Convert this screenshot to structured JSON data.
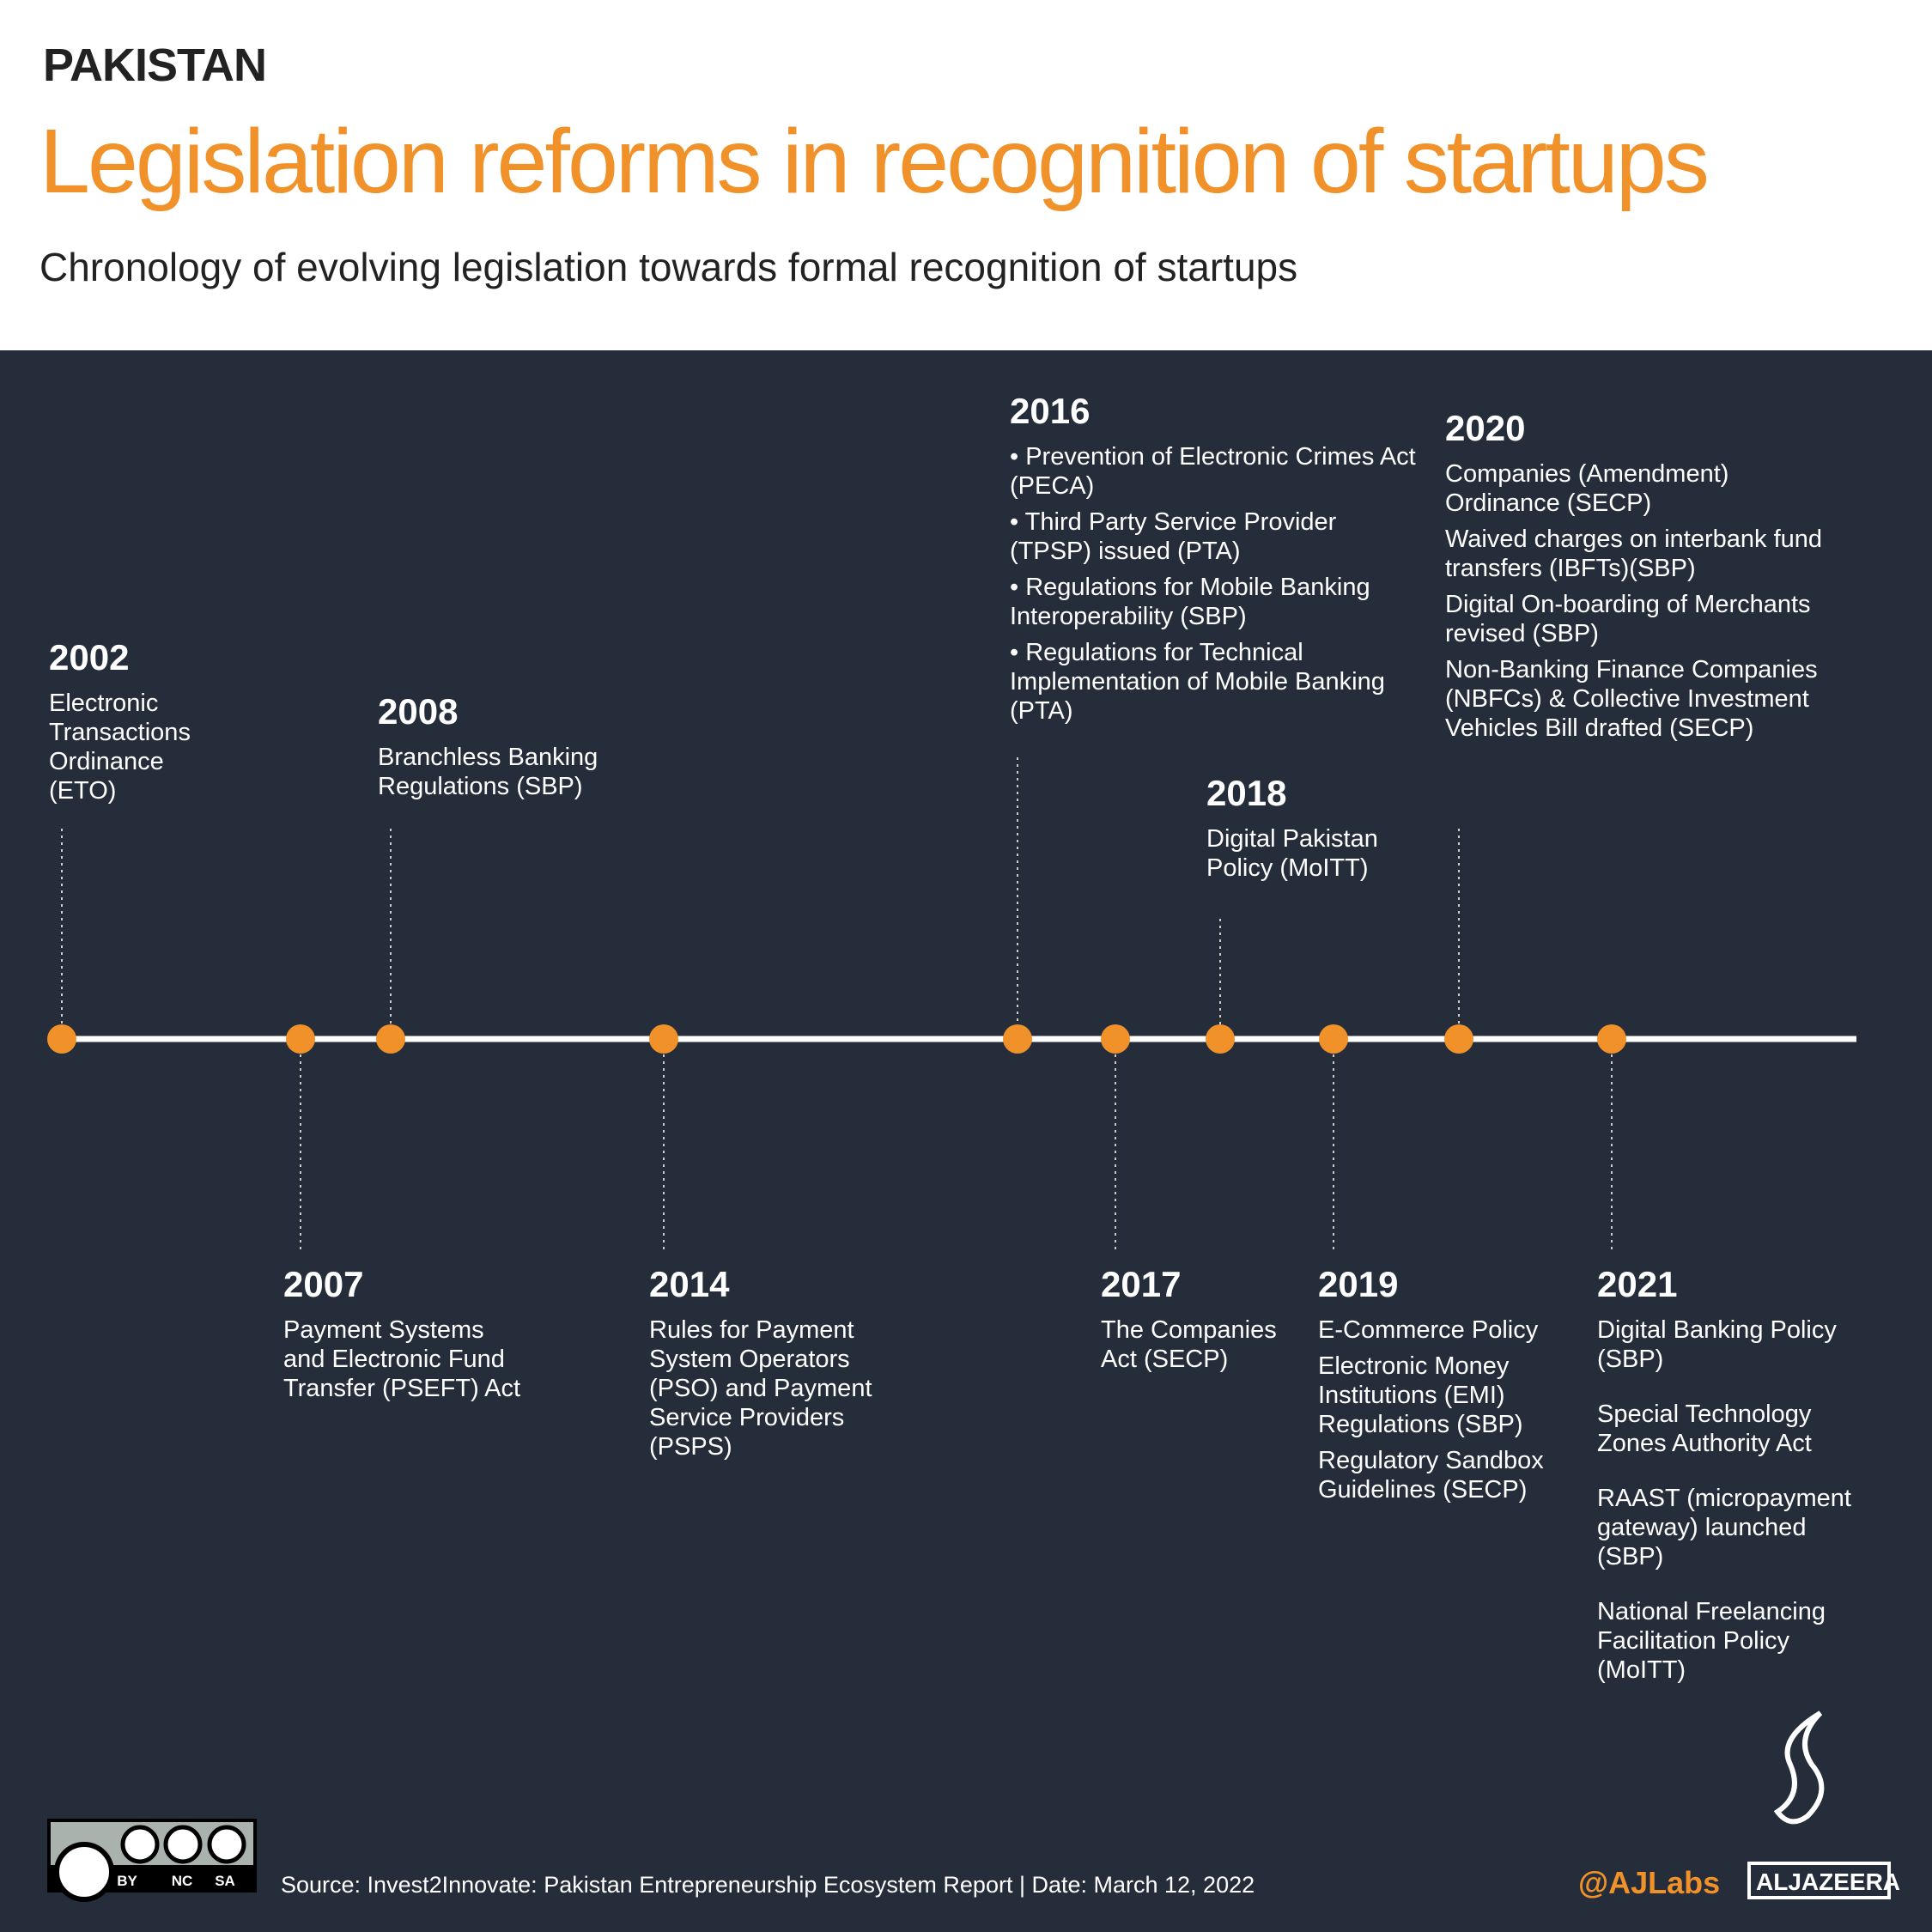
{
  "header": {
    "kicker": "PAKISTAN",
    "title": "Legislation reforms in recognition of startups",
    "subtitle": "Chronology of evolving legislation towards formal recognition of startups"
  },
  "events": [
    {
      "year": "2002",
      "items": [
        "Electronic Transactions Ordinance (ETO)"
      ]
    },
    {
      "year": "2007",
      "items": [
        "Payment Systems and Electronic Fund Transfer (PSEFT) Act"
      ]
    },
    {
      "year": "2008",
      "items": [
        "Branchless Banking Regulations (SBP)"
      ]
    },
    {
      "year": "2014",
      "items": [
        "Rules for Payment System Operators (PSO) and Payment Service Providers (PSPS)"
      ]
    },
    {
      "year": "2016",
      "items": [
        "• Prevention of Electronic Crimes Act (PECA)",
        "• Third Party Service Provider (TPSP) issued (PTA)",
        "• Regulations for Mobile Banking Interoperability (SBP)",
        "• Regulations for Technical Implementation of Mobile Banking (PTA)"
      ]
    },
    {
      "year": "2017",
      "items": [
        "The Companies Act (SECP)"
      ]
    },
    {
      "year": "2018",
      "items": [
        "Digital Pakistan Policy (MoITT)"
      ]
    },
    {
      "year": "2019",
      "items": [
        "E-Commerce Policy",
        "Electronic Money Institutions (EMI) Regulations (SBP)",
        "Regulatory Sandbox Guidelines (SECP)"
      ]
    },
    {
      "year": "2020",
      "items": [
        "Companies (Amendment) Ordinance (SECP)",
        "Waived charges on interbank fund transfers (IBFTs)(SBP)",
        "Digital On-boarding of Merchants revised (SBP)",
        "Non-Banking Finance Companies (NBFCs) & Collective Investment Vehicles Bill drafted (SECP)"
      ]
    },
    {
      "year": "2021",
      "items": [
        "Digital Banking Policy (SBP)",
        "Special Technology Zones Authority Act",
        "RAAST (micropayment gateway) launched (SBP)",
        "National Freelancing Facilitation Policy (MoITT)"
      ]
    }
  ],
  "footer": {
    "license": [
      "BY",
      "NC",
      "SA"
    ],
    "source": "Source: Invest2Innovate: Pakistan Entrepreneurship Ecosystem Report  |  Date: March 12, 2022",
    "handle": "@AJLabs",
    "brand": "ALJAZEERA"
  }
}
